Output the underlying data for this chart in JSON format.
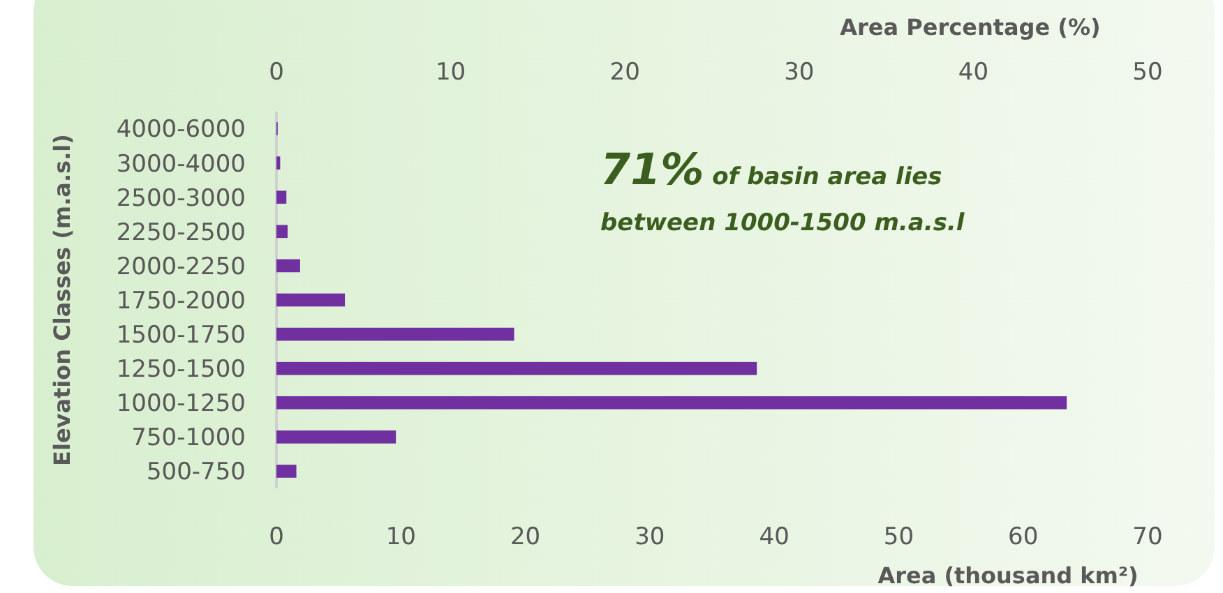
{
  "chart_data": {
    "type": "bar",
    "orientation": "horizontal",
    "categories": [
      "4000-6000",
      "3000-4000",
      "2500-3000",
      "2250-2500",
      "2000-2250",
      "1750-2000",
      "1500-1750",
      "1250-1500",
      "1000-1250",
      "750-1000",
      "500-750"
    ],
    "values": [
      0.1,
      0.3,
      0.8,
      0.9,
      1.9,
      5.5,
      19.1,
      38.6,
      63.5,
      9.6,
      1.6
    ],
    "color": "#7030a0",
    "xlim": [
      0,
      70
    ],
    "xticks": [
      0,
      10,
      20,
      30,
      40,
      50,
      60,
      70
    ],
    "x2lim": [
      0,
      50
    ],
    "x2ticks": [
      0,
      10,
      20,
      30,
      40,
      50
    ],
    "xlabel": "Area (thousand km²)",
    "x2label": "Area Percentage (%)",
    "ylabel": "Elevation Classes (m.a.s.l)",
    "annotations": [
      "71% of basin area lies between 1000-1500 m.a.s.l"
    ],
    "grid": false
  }
}
